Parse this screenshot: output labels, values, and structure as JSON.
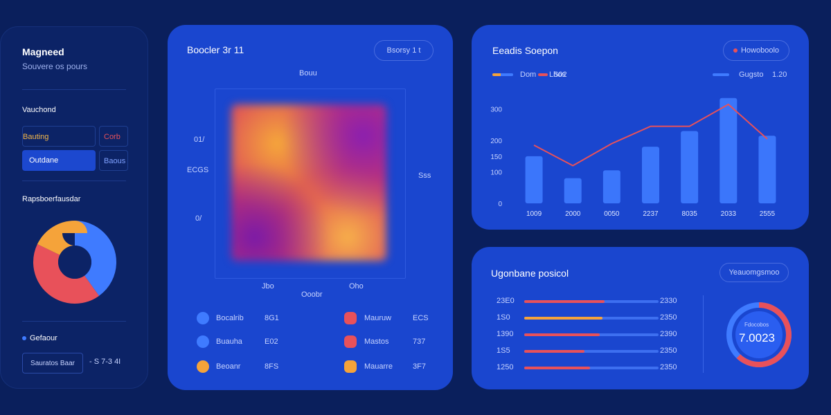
{
  "colors": {
    "background": "#0a1f5c",
    "card": "#1a46cf",
    "red": "#e8515a",
    "orange": "#f5a33a",
    "blue": "#3f7bff"
  },
  "sidebar": {
    "title": "Magneed",
    "subtitle": "Souvere os pours",
    "section1": "Vauchond",
    "rows": [
      {
        "label": "Bauting",
        "value": "Corb"
      },
      {
        "label": "Outdane",
        "value": "Baous"
      }
    ],
    "section2": "Rapsboerfausdar",
    "donut": [
      {
        "name": "blue",
        "value": 40,
        "color": "#3f7bff"
      },
      {
        "name": "red",
        "value": 42,
        "color": "#e8515a"
      },
      {
        "name": "orange",
        "value": 18,
        "color": "#f5a33a"
      }
    ],
    "status_label": "Gefaour",
    "footer_button": "Sauratos Baar",
    "footer_value": "- S 7-3 4I"
  },
  "heatmap": {
    "title": "Boocler 3r 11",
    "button": "Bsorsy 1 t",
    "top_label": "Bouu",
    "left_labels": [
      "01/",
      "ECGS",
      "0/"
    ],
    "right_label": "Sss",
    "bottom_labels": [
      "Jbo",
      "Oho"
    ],
    "bottom_title": "Ooobr",
    "legend": [
      {
        "label": "Bocalrib",
        "value": "8G1",
        "color": "#3f7bff"
      },
      {
        "label": "Mauruw",
        "value": "ECS",
        "color": "#e8515a"
      },
      {
        "label": "Buauha",
        "value": "E02",
        "color": "#3f7bff"
      },
      {
        "label": "Mastos",
        "value": "737",
        "color": "#e8515a"
      },
      {
        "label": "Beoanr",
        "value": "8FS",
        "color": "#f5a33a"
      },
      {
        "label": "Mauarre",
        "value": "3F7",
        "color": "#f5a33a"
      }
    ]
  },
  "line_chart": {
    "title": "Eeadis Soepon",
    "button": "Howoboolo",
    "legend_left": [
      "Dom",
      "Lbos",
      "S02"
    ],
    "legend_right": [
      "Gugsto",
      "1.20"
    ],
    "chart_data": {
      "type": "bar",
      "categories": [
        "1009",
        "2000",
        "0050",
        "2237",
        "8035",
        "2033",
        "2555"
      ],
      "y_ticks": [
        "0",
        "100",
        "150",
        "200",
        "300"
      ],
      "ylim": [
        0,
        330
      ],
      "series": [
        {
          "name": "bars",
          "type": "bar",
          "values": [
            150,
            80,
            105,
            180,
            230,
            335,
            215
          ],
          "color": "#3f7bff"
        },
        {
          "name": "line",
          "type": "line",
          "values": [
            185,
            120,
            190,
            245,
            245,
            315,
            205
          ],
          "color": "#e8515a"
        }
      ]
    }
  },
  "progress": {
    "title": "Ugonbane posicol",
    "button": "Yeauomgsmoo",
    "rows": [
      {
        "label": "23E0",
        "value": "2330",
        "fraction": 0.6,
        "color": "#e8515a"
      },
      {
        "label": "1S0",
        "value": "2350",
        "fraction": 0.58,
        "color": "#f5a33a"
      },
      {
        "label": "1390",
        "value": "2390",
        "fraction": 0.56,
        "color": "#e8515a"
      },
      {
        "label": "1S5",
        "value": "2350",
        "fraction": 0.45,
        "color": "#e8515a"
      },
      {
        "label": "1250",
        "value": "2350",
        "fraction": 0.49,
        "color": "#e8515a"
      }
    ],
    "gauge_label": "Fdocobos",
    "gauge_value": "7.0023",
    "gauge_fraction": 0.62
  }
}
